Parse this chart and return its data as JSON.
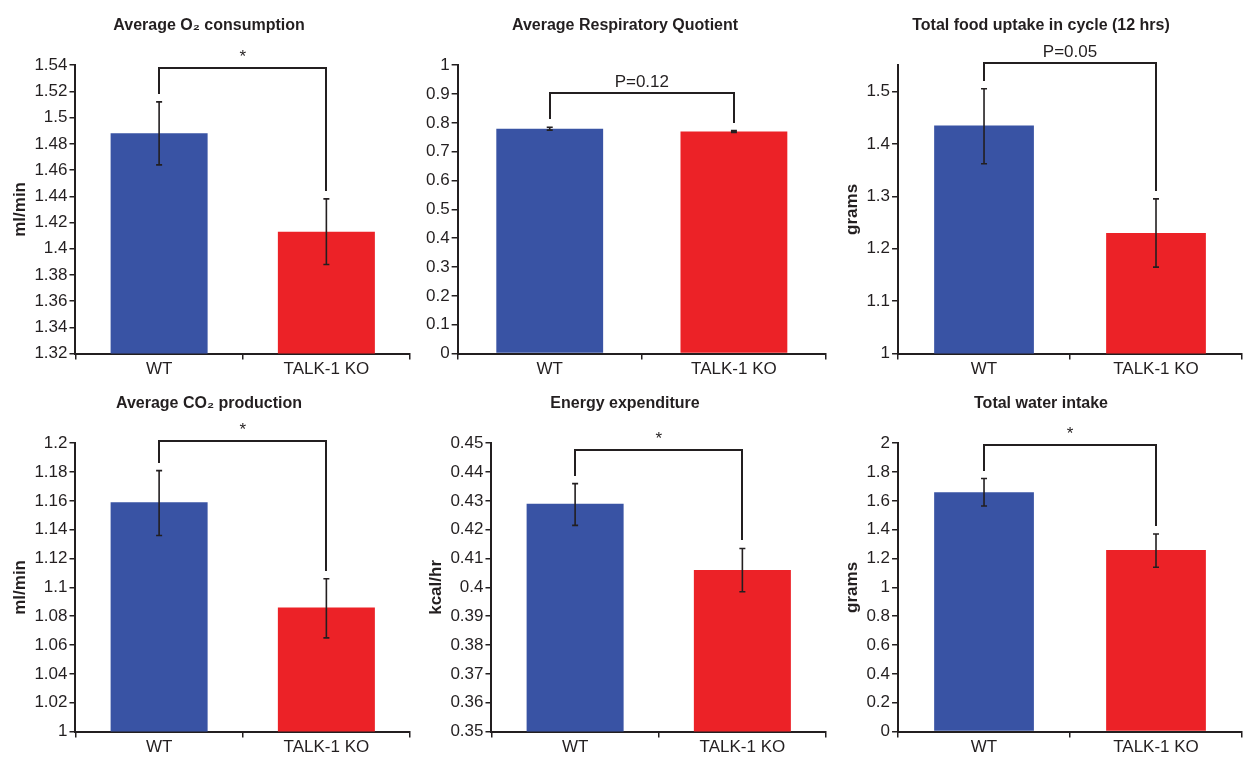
{
  "chart_data": [
    {
      "type": "bar",
      "title": "Average O₂ consumption",
      "ylabel": "ml/min",
      "categories": [
        "WT",
        "TALK-1 KO"
      ],
      "values": [
        1.488,
        1.413
      ],
      "colors": [
        "#3953a4",
        "#ec2227"
      ],
      "errors": [
        0.024,
        0.025
      ],
      "ylim": [
        1.32,
        1.54
      ],
      "yticks": [
        1.32,
        1.34,
        1.36,
        1.38,
        1.4,
        1.42,
        1.44,
        1.46,
        1.48,
        1.5,
        1.52,
        1.54
      ],
      "annotations": [
        "*"
      ]
    },
    {
      "type": "bar",
      "title": "Average Respiratory Quotient",
      "categories": [
        "WT",
        "TALK-1 KO"
      ],
      "values": [
        0.78,
        0.77
      ],
      "colors": [
        "#3953a4",
        "#ec2227"
      ],
      "errors": [
        0.005,
        0.003
      ],
      "ylim": [
        0,
        1
      ],
      "yticks": [
        0,
        0.1,
        0.2,
        0.3,
        0.4,
        0.5,
        0.6,
        0.7,
        0.8,
        0.9,
        1
      ],
      "annotations": [
        "P=0.12"
      ]
    },
    {
      "type": "bar",
      "title": "Total food uptake in cycle (12 hrs)",
      "ylabel": "grams",
      "categories": [
        "WT",
        "TALK-1 KO"
      ],
      "values": [
        1.435,
        1.23
      ],
      "colors": [
        "#3953a4",
        "#ec2227"
      ],
      "errors": [
        [
          1.362,
          1.505
        ],
        [
          1.165,
          1.295
        ]
      ],
      "ylim": [
        1,
        1.55
      ],
      "yticks": [
        1,
        1.1,
        1.2,
        1.3,
        1.4,
        1.5
      ],
      "annotations": [
        "P=0.05"
      ]
    },
    {
      "type": "bar",
      "title": "Average CO₂ production",
      "ylabel": "ml/min",
      "categories": [
        "WT",
        "TALK-1 KO"
      ],
      "values": [
        1.159,
        1.086
      ],
      "colors": [
        "#3953a4",
        "#ec2227"
      ],
      "errors": [
        [
          1.136,
          1.181
        ],
        [
          1.065,
          1.106
        ]
      ],
      "ylim": [
        1,
        1.2
      ],
      "yticks": [
        1,
        1.02,
        1.04,
        1.06,
        1.08,
        1.1,
        1.12,
        1.14,
        1.16,
        1.18,
        1.2
      ],
      "annotations": [
        "*"
      ]
    },
    {
      "type": "bar",
      "title": "Energy expenditure",
      "ylabel": "kcal/hr",
      "categories": [
        "WT",
        "TALK-1 KO"
      ],
      "values": [
        0.429,
        0.406
      ],
      "colors": [
        "#3953a4",
        "#ec2227"
      ],
      "errors": [
        [
          0.4215,
          0.436
        ],
        [
          0.3985,
          0.4135
        ]
      ],
      "ylim": [
        0.35,
        0.45
      ],
      "yticks": [
        0.35,
        0.36,
        0.37,
        0.38,
        0.39,
        0.4,
        0.41,
        0.42,
        0.43,
        0.44,
        0.45
      ],
      "annotations": [
        "*"
      ]
    },
    {
      "type": "bar",
      "title": "Total water intake",
      "ylabel": "grams",
      "categories": [
        "WT",
        "TALK-1 KO"
      ],
      "values": [
        1.66,
        1.26
      ],
      "colors": [
        "#3953a4",
        "#ec2227"
      ],
      "errors": [
        [
          1.565,
          1.755
        ],
        [
          1.14,
          1.37
        ]
      ],
      "ylim": [
        0,
        2
      ],
      "yticks": [
        0,
        0.2,
        0.4,
        0.6,
        0.8,
        1,
        1.2,
        1.4,
        1.6,
        1.8,
        2
      ],
      "annotations": [
        "*"
      ]
    }
  ]
}
